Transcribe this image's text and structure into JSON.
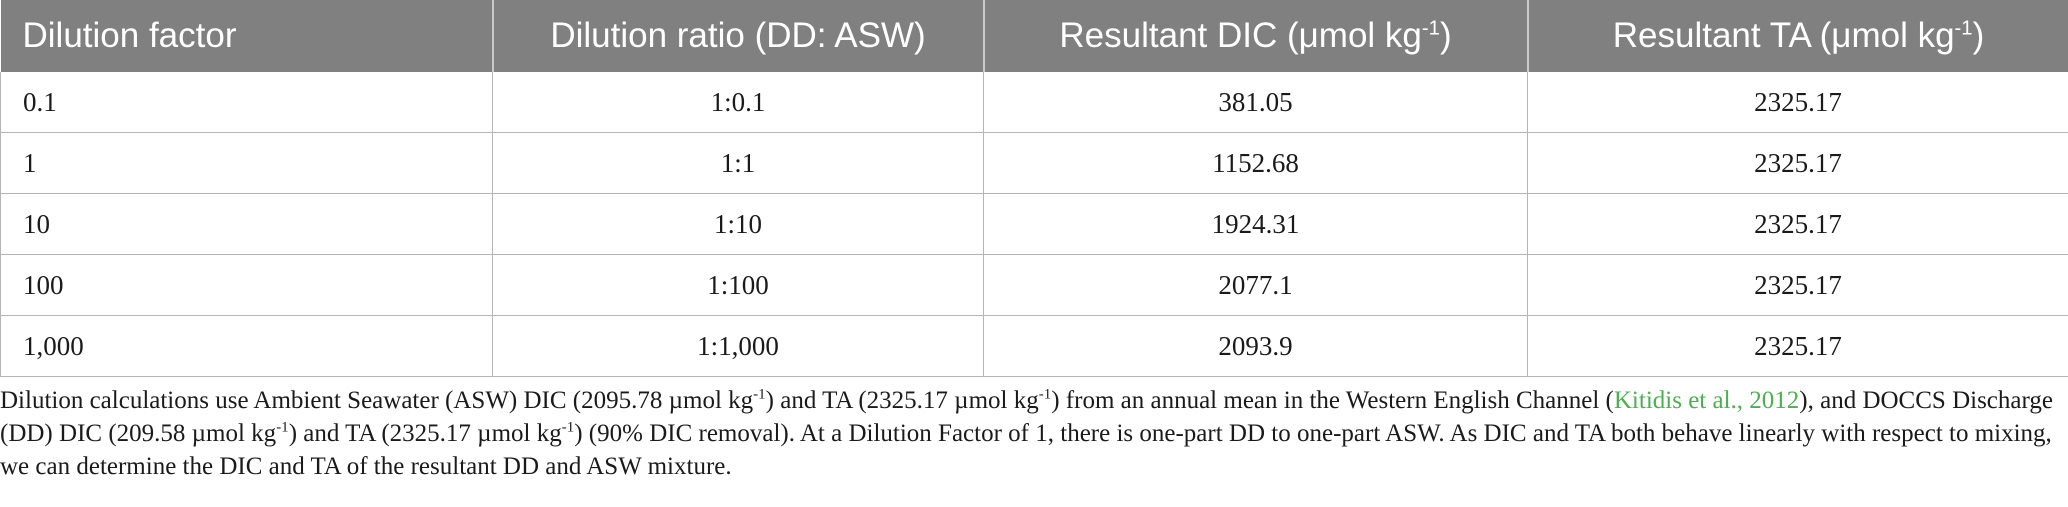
{
  "table": {
    "headers": [
      {
        "text": "Dilution factor",
        "unit": "",
        "sup": "",
        "close": ""
      },
      {
        "text": "Dilution ratio (DD: ASW)",
        "unit": "",
        "sup": "",
        "close": ""
      },
      {
        "text": "Resultant DIC (",
        "unit": "μmol kg",
        "sup": "-1",
        "close": ")"
      },
      {
        "text": "Resultant TA (",
        "unit": "μmol kg",
        "sup": "-1",
        "close": ")"
      }
    ],
    "rows": [
      [
        "0.1",
        "1:0.1",
        "381.05",
        "2325.17"
      ],
      [
        "1",
        "1:1",
        "1152.68",
        "2325.17"
      ],
      [
        "10",
        "1:10",
        "1924.31",
        "2325.17"
      ],
      [
        "100",
        "1:100",
        "2077.1",
        "2325.17"
      ],
      [
        "1,000",
        "1:1,000",
        "2093.9",
        "2325.17"
      ]
    ]
  },
  "footnote": {
    "p1": "Dilution calculations use Ambient Seawater (ASW) DIC (2095.78 µmol kg",
    "s1": "-1",
    "p2": ") and TA (2325.17 µmol kg",
    "s2": "-1",
    "p3": ") from an annual mean in the Western English Channel (",
    "citation": "Kitidis et al., 2012",
    "p4": "), and DOCCS Discharge (DD) DIC (209.58 µmol kg",
    "s3": "-1",
    "p5": ") and TA (2325.17 µmol kg",
    "s4": "-1",
    "p6": ") (90% DIC removal). At a Dilution Factor of 1, there is one-part DD to one-part ASW. As DIC and TA both behave linearly with respect to mixing, we can determine the DIC and TA of the resultant DD and ASW mixture.",
    "citation_color": "#4caf50"
  },
  "colors": {
    "header_bg": "#808080",
    "header_text": "#ffffff",
    "border": "#b5b5b5"
  }
}
